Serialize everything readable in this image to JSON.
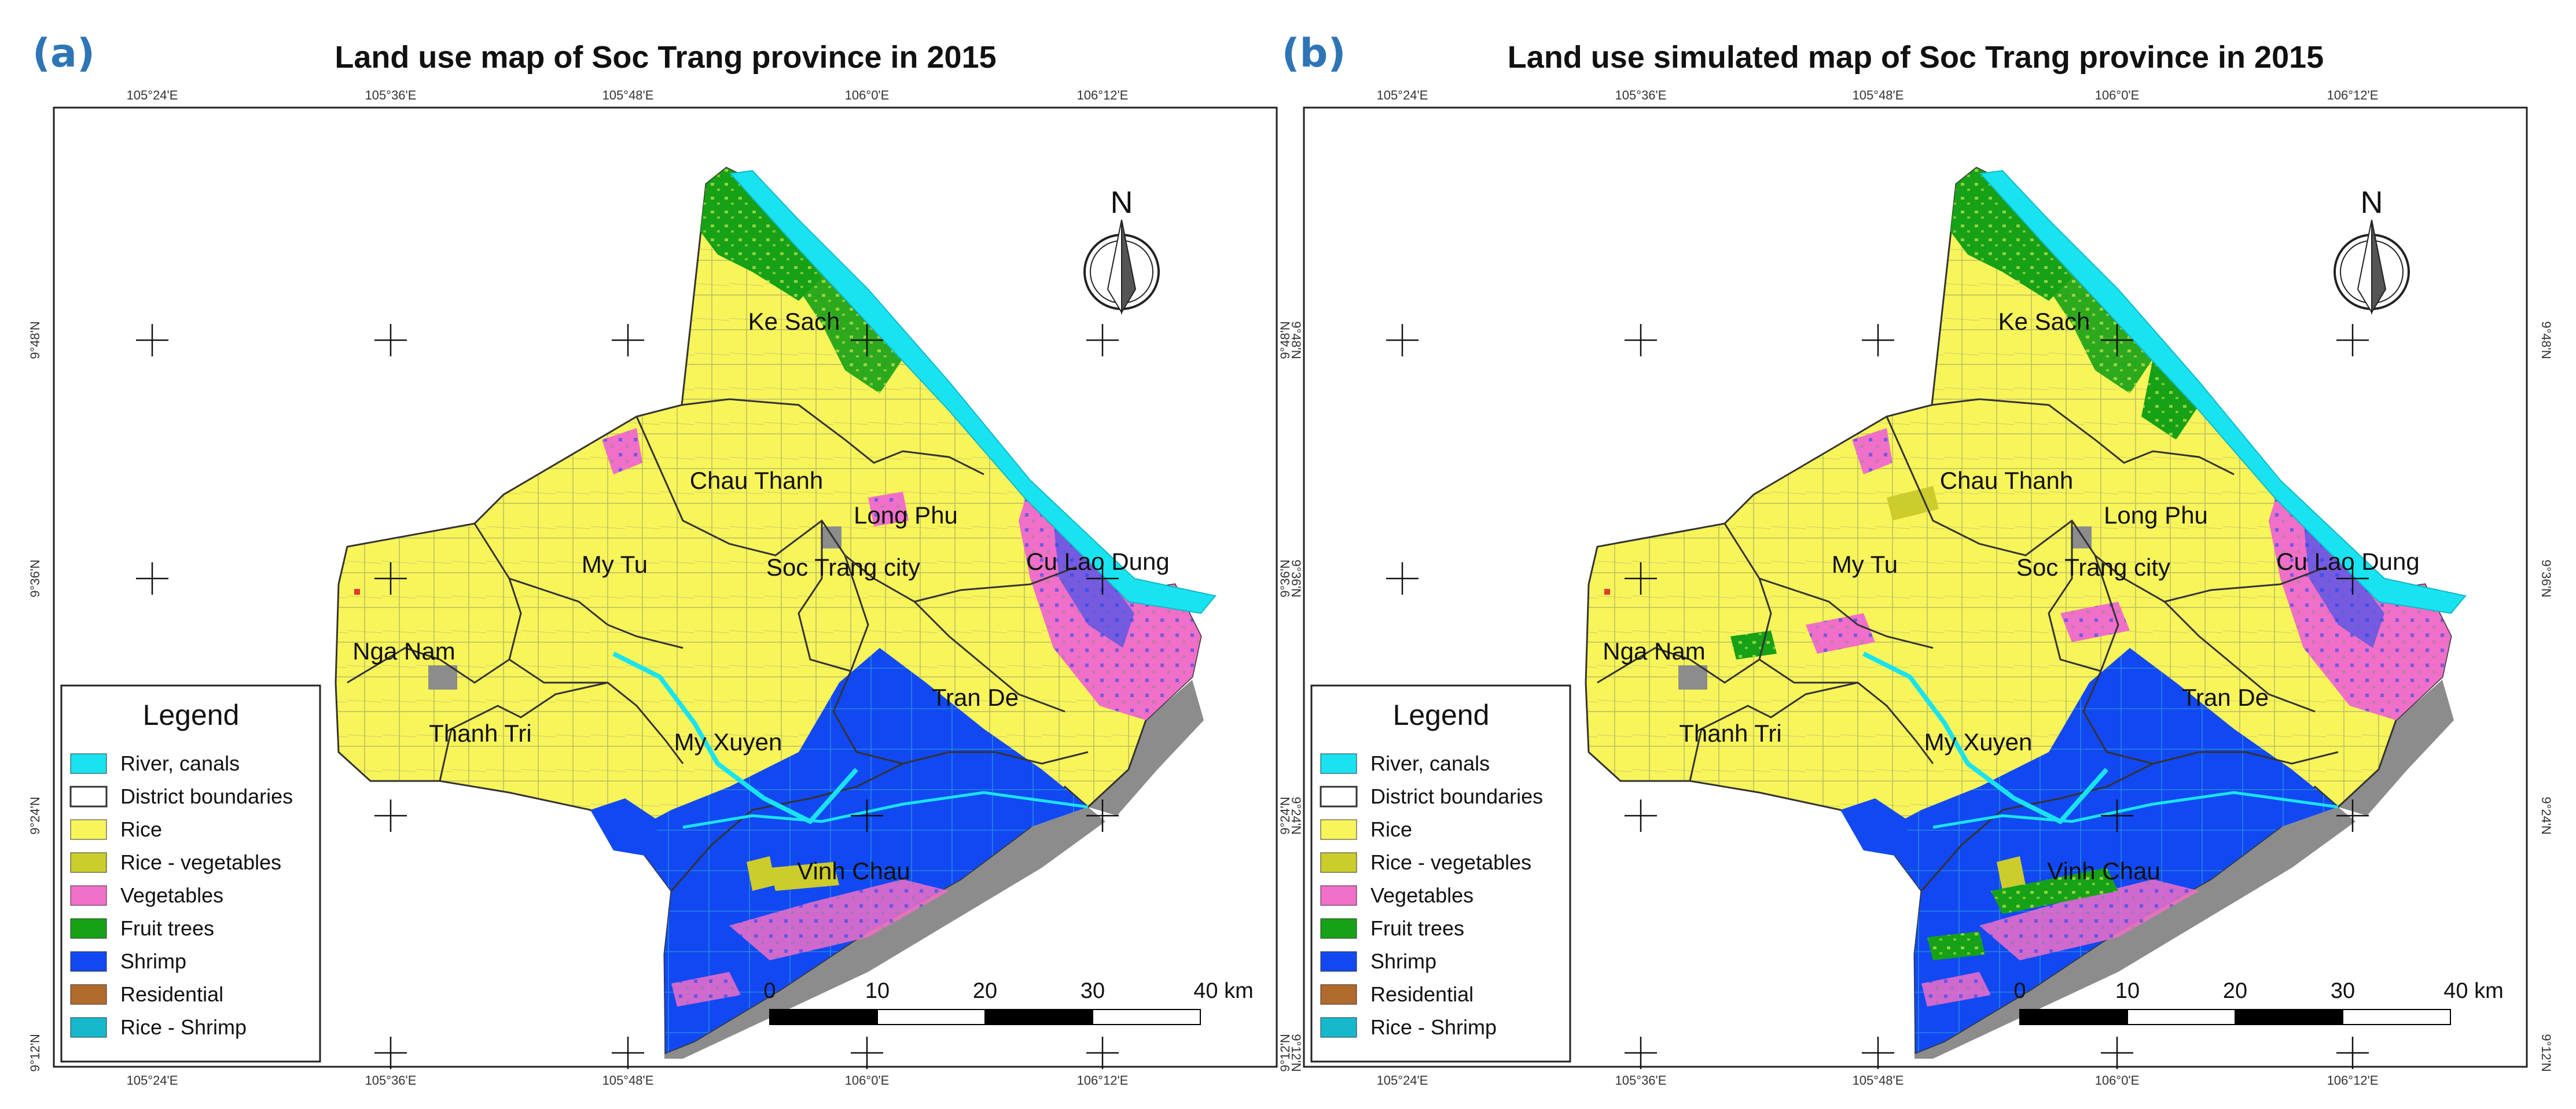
{
  "panels": [
    {
      "letter": "(a)",
      "title": "Land use map of Soc Trang province in 2015",
      "pattern": "observed"
    },
    {
      "letter": "(b)",
      "title": "Land use simulated map of Soc Trang province in 2015",
      "pattern": "simulated"
    }
  ],
  "lon_ticks": [
    "105°24'E",
    "105°36'E",
    "105°48'E",
    "106°0'E",
    "106°12'E"
  ],
  "lat_ticks": [
    "9°48'N",
    "9°36'N",
    "9°24'N",
    "9°12'N"
  ],
  "districts": [
    "Ke Sach",
    "Chau Thanh",
    "Long Phu",
    "My Tu",
    "Soc Trang city",
    "Cu Lao Dung",
    "Nga Nam",
    "Tran De",
    "Thanh Tri",
    "My Xuyen",
    "Vinh Chau"
  ],
  "north_label": "N",
  "legend": {
    "title": "Legend",
    "items": [
      {
        "label": "River, canals",
        "color": "#19e3f0",
        "kind": "fill"
      },
      {
        "label": "District boundaries",
        "color": "#ffffff",
        "kind": "outline"
      },
      {
        "label": "Rice",
        "color": "#f7f55a",
        "kind": "fill"
      },
      {
        "label": "Rice - vegetables",
        "color": "#cccc2c",
        "kind": "fill"
      },
      {
        "label": "Vegetables",
        "color": "#f06fc8",
        "kind": "fill"
      },
      {
        "label": "Fruit trees",
        "color": "#16a116",
        "kind": "fill"
      },
      {
        "label": "Shrimp",
        "color": "#1248f2",
        "kind": "fill"
      },
      {
        "label": "Residential",
        "color": "#b06a2c",
        "kind": "fill"
      },
      {
        "label": "Rice - Shrimp",
        "color": "#16b9cc",
        "kind": "fill"
      }
    ]
  },
  "scale_bar": {
    "ticks": [
      "0",
      "10",
      "20",
      "30"
    ],
    "end_label": "40 km"
  },
  "colors": {
    "panel_letter": "#2e75b6",
    "mudflat": "#8c8c8c",
    "canal_line": "#666666"
  }
}
